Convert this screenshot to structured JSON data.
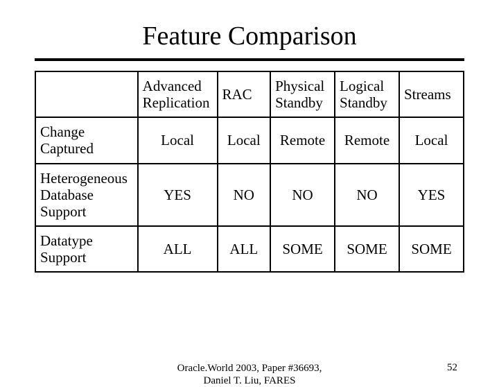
{
  "title": "Feature Comparison",
  "table": {
    "columns": [
      "",
      "Advanced Replication",
      "RAC",
      "Physical Standby",
      "Logical Standby",
      "Streams"
    ],
    "rows": [
      {
        "label": "Change Captured",
        "cells": [
          "Local",
          "Local",
          "Remote",
          "Remote",
          "Local"
        ]
      },
      {
        "label": "Heterogeneous Database Support",
        "cells": [
          "YES",
          "NO",
          "NO",
          "NO",
          "YES"
        ]
      },
      {
        "label": "Datatype Support",
        "cells": [
          "ALL",
          "ALL",
          "SOME",
          "SOME",
          "SOME"
        ]
      }
    ],
    "border_color": "#000000",
    "background_color": "#ffffff",
    "font_size_pt": 16
  },
  "footer": {
    "center_line1": "Oracle.World 2003, Paper #36693,",
    "center_line2": "Daniel T. Liu, FARES",
    "page_number": "52"
  }
}
